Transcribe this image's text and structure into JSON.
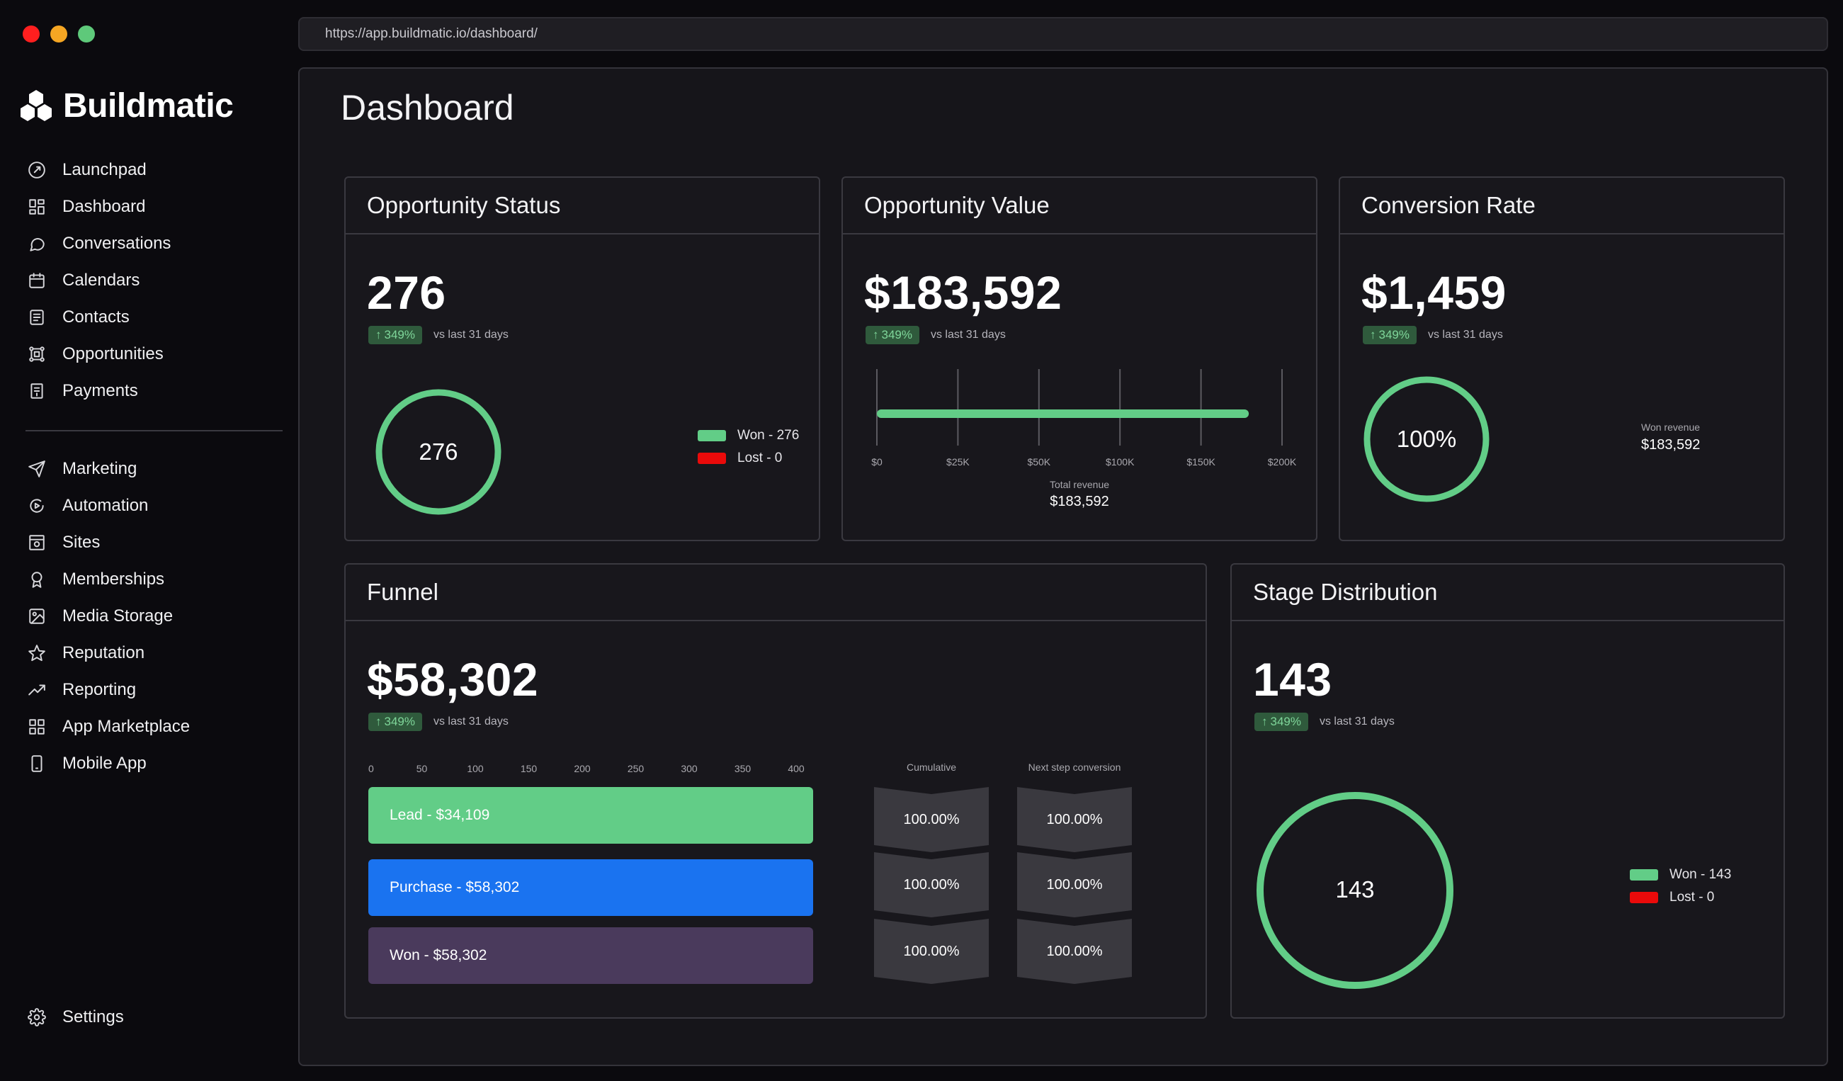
{
  "window": {
    "controls": [
      "close",
      "minimize",
      "maximize"
    ],
    "colors": [
      "#ff1f1f",
      "#f5a623",
      "#5ec97a"
    ]
  },
  "url": "https://app.buildmatic.io/dashboard/",
  "brand": {
    "name": "Buildmatic",
    "icon": "hexagon-logo-icon"
  },
  "sidebar": {
    "primary": [
      {
        "label": "Launchpad",
        "icon": "rocket-icon"
      },
      {
        "label": "Dashboard",
        "icon": "dashboard-grid-icon"
      },
      {
        "label": "Conversations",
        "icon": "chat-bubble-icon"
      },
      {
        "label": "Calendars",
        "icon": "calendar-icon"
      },
      {
        "label": "Contacts",
        "icon": "contacts-book-icon"
      },
      {
        "label": "Opportunities",
        "icon": "opportunities-nodes-icon"
      },
      {
        "label": "Payments",
        "icon": "receipt-icon"
      }
    ],
    "secondary": [
      {
        "label": "Marketing",
        "icon": "send-plane-icon"
      },
      {
        "label": "Automation",
        "icon": "automation-icon"
      },
      {
        "label": "Sites",
        "icon": "browser-window-icon"
      },
      {
        "label": "Memberships",
        "icon": "award-ribbon-icon"
      },
      {
        "label": "Media Storage",
        "icon": "image-icon"
      },
      {
        "label": "Reputation",
        "icon": "star-icon"
      },
      {
        "label": "Reporting",
        "icon": "trend-up-icon"
      },
      {
        "label": "App Marketplace",
        "icon": "apps-grid-icon"
      },
      {
        "label": "Mobile App",
        "icon": "mobile-phone-icon"
      }
    ],
    "settings": {
      "label": "Settings",
      "icon": "gear-icon"
    }
  },
  "page": {
    "title": "Dashboard"
  },
  "accent": {
    "green": "#62cd87",
    "red": "#ea0a0a",
    "blue": "#1a73f0",
    "purple": "#4a3a5c",
    "badge_bg": "#2f5a3c",
    "badge_text": "#7fd69a"
  },
  "cards": {
    "opportunity_status": {
      "title": "Opportunity Status",
      "value": "276",
      "delta": "349%",
      "delta_sub": "vs last 31 days",
      "ring_value": "276",
      "legend": [
        {
          "label": "Won - 276",
          "color": "#62cd87"
        },
        {
          "label": "Lost - 0",
          "color": "#ea0a0a"
        }
      ]
    },
    "opportunity_value": {
      "title": "Opportunity Value",
      "value": "$183,592",
      "delta": "349%",
      "delta_sub": "vs last 31 days",
      "total_label": "Total revenue",
      "total_value": "$183,592"
    },
    "conversion_rate": {
      "title": "Conversion Rate",
      "value": "$1,459",
      "delta": "349%",
      "delta_sub": "vs last 31 days",
      "ring_value": "100%",
      "side_label": "Won revenue",
      "side_value": "$183,592"
    },
    "funnel": {
      "title": "Funnel",
      "value": "$58,302",
      "delta": "349%",
      "delta_sub": "vs last 31 days",
      "axis_ticks": [
        "0",
        "50",
        "100",
        "150",
        "200",
        "250",
        "300",
        "350",
        "400"
      ],
      "stages": [
        {
          "label": "Lead - $34,109",
          "color": "#62cd87"
        },
        {
          "label": "Purchase - $58,302",
          "color": "#1a73f0"
        },
        {
          "label": "Won - $58,302",
          "color": "#4a3a5c"
        }
      ],
      "cumulative_header": "Cumulative",
      "next_header": "Next step conversion",
      "cumulative": [
        "100.00%",
        "100.00%",
        "100.00%"
      ],
      "next": [
        "100.00%",
        "100.00%",
        "100.00%"
      ]
    },
    "stage_distribution": {
      "title": "Stage Distribution",
      "value": "143",
      "delta": "349%",
      "delta_sub": "vs last 31 days",
      "ring_value": "143",
      "legend": [
        {
          "label": "Won - 143",
          "color": "#62cd87"
        },
        {
          "label": "Lost - 0",
          "color": "#ea0a0a"
        }
      ]
    }
  },
  "chart_data": {
    "type": "bar",
    "categories": [
      "Total revenue"
    ],
    "values": [
      183592
    ],
    "title": "",
    "xlabel": "Total revenue",
    "ylabel": "",
    "xlim": [
      0,
      200000
    ],
    "ticks": [
      "$0",
      "$25K",
      "$50K",
      "$100K",
      "$150K",
      "$200K"
    ],
    "grid": true,
    "orientation": "horizontal"
  }
}
